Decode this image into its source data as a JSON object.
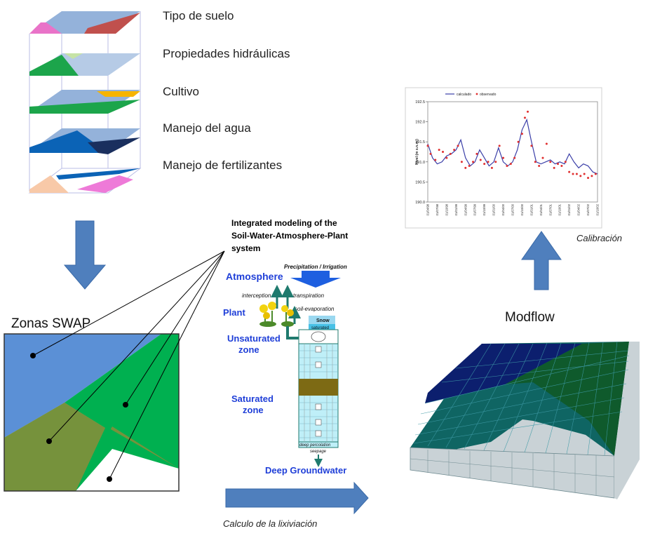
{
  "layer_labels": [
    "Tipo de suelo",
    "Propiedades hidráulicas",
    "Cultivo",
    "Manejo del agua",
    "Manejo de fertilizantes"
  ],
  "zones_title": "Zonas SWAP",
  "modflow_title": "Modflow",
  "calibration_caption": "Calibración",
  "leaching_caption": "Calculo de la lixiviación",
  "swap_panel": {
    "title_lines": [
      "Integrated modeling of the",
      "Soil-Water-Atmosphere-Plant",
      "system"
    ],
    "atmosphere": "Atmosphere",
    "plant": "Plant",
    "unsaturated_lines": [
      "Unsaturated",
      "zone"
    ],
    "saturated_lines": [
      "Saturated",
      "zone"
    ],
    "deep_groundwater": "Deep Groundwater",
    "precipitation": "Precipitation / Irrigation",
    "interception": "interception",
    "transpiration": "transpiration",
    "soil_evaporation": "soil-evaporation",
    "snow": "Snow",
    "saturated_small": "saturated",
    "deep_percolation": "deep percolation",
    "seepage": "seepage"
  },
  "chart_data": {
    "type": "line",
    "legend": [
      "calculado",
      "observado"
    ],
    "ylabel": "Nivel (m s.n.m.)",
    "ylim": [
      190.0,
      192.5
    ],
    "yticks": [
      "190.0",
      "190.5",
      "191.0",
      "191.5",
      "192.0",
      "192.5"
    ],
    "xticks": [
      "01/04/98",
      "01/07/98",
      "01/10/98",
      "01/01/99",
      "01/04/99",
      "01/07/99",
      "01/10/99",
      "01/01/00",
      "01/04/00",
      "01/07/00",
      "01/10/00",
      "01/01/01",
      "01/04/01",
      "01/07/01",
      "01/10/01",
      "01/01/02",
      "01/04/02",
      "01/07/02",
      "01/10/02"
    ],
    "series": [
      {
        "name": "calculado",
        "x": [
          0,
          0.5,
          1,
          1.5,
          2,
          2.5,
          3,
          3.5,
          4,
          4.5,
          5,
          5.5,
          6,
          6.5,
          7,
          7.5,
          8,
          8.5,
          9,
          9.5,
          10,
          10.5,
          11,
          11.5,
          12,
          12.5,
          13,
          13.5,
          14,
          14.5,
          15,
          15.5,
          16,
          16.5,
          17,
          17.5,
          18
        ],
        "values": [
          191.45,
          191.1,
          190.95,
          191.0,
          191.15,
          191.2,
          191.3,
          191.55,
          191.1,
          190.9,
          191.0,
          191.3,
          191.1,
          190.9,
          191.0,
          191.35,
          191.0,
          190.9,
          191.0,
          191.3,
          191.8,
          192.05,
          191.5,
          191.0,
          190.95,
          191.0,
          191.05,
          190.95,
          191.0,
          190.95,
          191.2,
          191.0,
          190.85,
          190.95,
          190.9,
          190.75,
          190.7
        ]
      },
      {
        "name": "observado",
        "x": [
          0,
          0.3,
          0.8,
          1.2,
          1.6,
          2.0,
          2.4,
          2.8,
          3.2,
          3.6,
          4.0,
          4.4,
          4.8,
          5.2,
          5.6,
          6.0,
          6.4,
          6.8,
          7.2,
          7.6,
          8.0,
          8.4,
          8.8,
          9.2,
          9.6,
          10.0,
          10.3,
          10.6,
          11.0,
          11.4,
          11.8,
          12.2,
          12.6,
          13.0,
          13.4,
          13.8,
          14.2,
          14.6,
          15.0,
          15.4,
          15.8,
          16.2,
          16.6,
          17.0,
          17.4,
          17.8
        ],
        "values": [
          191.4,
          191.2,
          191.05,
          191.3,
          191.25,
          191.1,
          191.2,
          191.3,
          191.4,
          191.0,
          190.85,
          190.9,
          191.0,
          191.2,
          191.05,
          190.95,
          191.0,
          190.85,
          191.0,
          191.4,
          191.1,
          190.9,
          190.95,
          191.1,
          191.5,
          191.7,
          192.1,
          192.25,
          191.4,
          191.0,
          190.9,
          191.1,
          191.45,
          191.0,
          190.85,
          190.95,
          190.9,
          191.0,
          190.75,
          190.7,
          190.7,
          190.65,
          190.7,
          190.6,
          190.65,
          190.7
        ]
      }
    ]
  },
  "colors": {
    "arrow": "#4f7fbd",
    "blue": "#5b90d6",
    "green": "#00b050",
    "olive": "#76923c",
    "navy": "#0c1f6e",
    "teal": "#0f6563",
    "darkgreen": "#0f5a2c",
    "light": "#c9d2d6"
  }
}
